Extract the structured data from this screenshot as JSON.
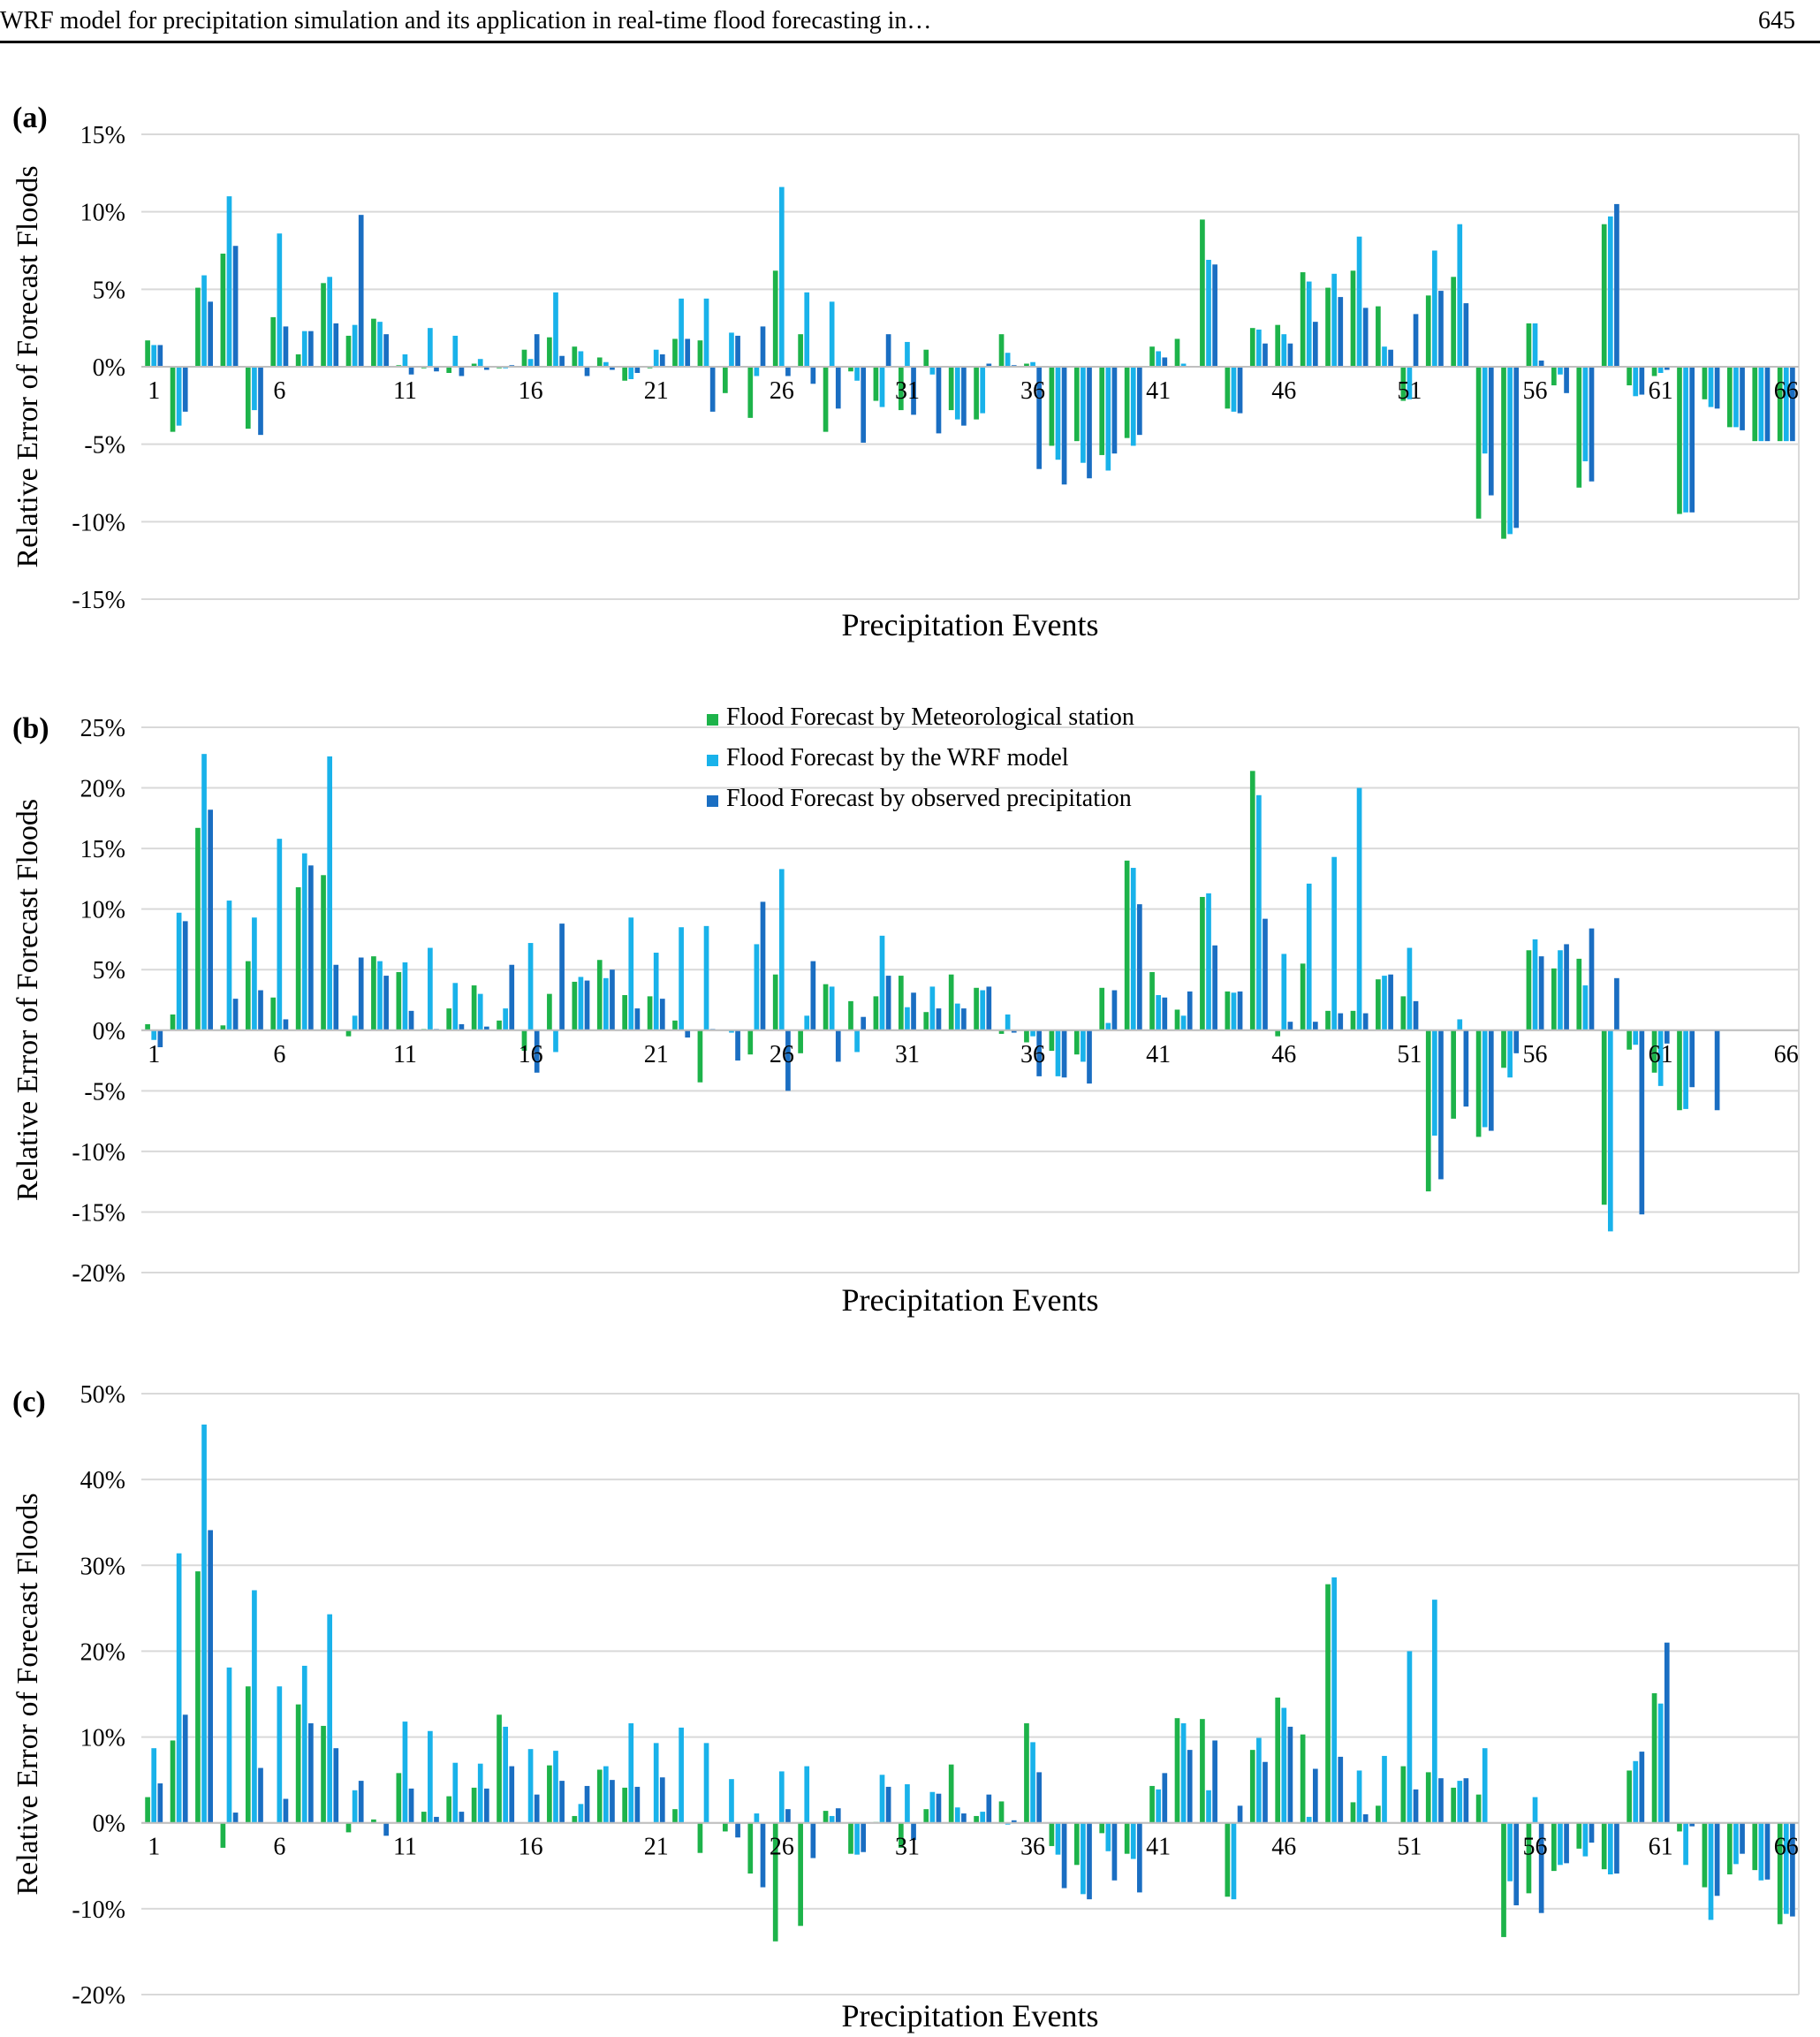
{
  "header": {
    "title": "WRF model for precipitation simulation and its application in real-time flood forecasting in…",
    "page_number": "645"
  },
  "colors": {
    "meteorological": "#1db34a",
    "wrf": "#19b2ea",
    "observed": "#1a6ec2",
    "grid": "#d9d9d9",
    "axis": "#bfbfbf"
  },
  "legend": {
    "items": [
      {
        "label": "Flood Forecast by Meteorological station",
        "color": "#1db34a"
      },
      {
        "label": "Flood Forecast by the WRF model",
        "color": "#19b2ea"
      },
      {
        "label": "Flood Forecast by observed precipitation",
        "color": "#1a6ec2"
      }
    ]
  },
  "chart_data": [
    {
      "type": "bar",
      "panel_label": "(a)",
      "xlabel": "Precipitation Events",
      "ylabel": "Relative Error of Forecast Floods",
      "ylim": [
        -15,
        15
      ],
      "yticks": [
        -15,
        -10,
        -5,
        0,
        5,
        10,
        15
      ],
      "ytick_labels": [
        "-15%",
        "-10%",
        "-5%",
        "0%",
        "5%",
        "10%",
        "15%"
      ],
      "xtick_labels": [
        "1",
        "6",
        "11",
        "16",
        "21",
        "26",
        "31",
        "36",
        "41",
        "46",
        "51",
        "56",
        "61",
        "66"
      ],
      "series": [
        {
          "name": "Flood Forecast by Meteorological station",
          "values": [
            1.7,
            -4.2,
            5.1,
            7.3,
            -4.0,
            3.2,
            0.8,
            5.4,
            2.0,
            3.1,
            0.1,
            -0.1,
            -0.4,
            0.2,
            -0.1,
            1.1,
            1.9,
            1.3,
            0.6,
            -0.9,
            -0.1,
            1.8,
            1.7,
            -1.7,
            -3.3,
            6.2,
            2.1,
            -4.2,
            -0.3,
            -2.2,
            -2.8,
            1.1,
            -2.8,
            -3.4,
            2.1,
            0.2,
            -5.1,
            -4.8,
            -5.7,
            -4.6,
            1.3,
            1.8,
            9.5,
            -2.7,
            2.5,
            2.7,
            6.1,
            5.1,
            6.2,
            3.9,
            -2.2,
            4.6,
            5.8,
            -9.8,
            -11.1,
            2.8,
            -1.2,
            -7.8,
            9.2,
            -1.2,
            -0.6,
            -9.5,
            -2.1,
            -3.9,
            -4.8,
            -4.8
          ]
        },
        {
          "name": "Flood Forecast by the WRF model",
          "values": [
            1.4,
            -3.8,
            5.9,
            11.0,
            -2.8,
            8.6,
            2.3,
            5.8,
            2.7,
            2.9,
            0.8,
            2.5,
            2.0,
            0.5,
            -0.1,
            0.5,
            4.8,
            1.0,
            0.3,
            -0.8,
            1.1,
            4.4,
            4.4,
            2.2,
            -0.6,
            11.6,
            4.8,
            4.2,
            -0.9,
            -2.6,
            1.6,
            -0.5,
            -3.4,
            -3.0,
            0.9,
            0.3,
            -6.0,
            -6.2,
            -6.7,
            -5.1,
            1.0,
            0.2,
            6.9,
            -2.9,
            2.4,
            2.1,
            5.5,
            6.0,
            8.4,
            1.3,
            -2.1,
            7.5,
            9.2,
            -5.6,
            -10.8,
            2.8,
            -0.5,
            -6.1,
            9.7,
            -1.9,
            -0.4,
            -9.4,
            -2.6,
            -3.9,
            -4.8,
            -4.8
          ]
        },
        {
          "name": "Flood Forecast by observed precipitation",
          "values": [
            1.4,
            -2.9,
            4.2,
            7.8,
            -4.4,
            2.6,
            2.3,
            2.8,
            9.8,
            2.1,
            -0.5,
            -0.3,
            -0.6,
            -0.2,
            0.1,
            2.1,
            0.7,
            -0.6,
            -0.2,
            -0.4,
            0.8,
            1.8,
            -2.9,
            2.0,
            2.6,
            -0.6,
            -1.1,
            -2.7,
            -4.9,
            2.1,
            -3.1,
            -4.3,
            -3.8,
            0.2,
            0.1,
            -6.6,
            -7.6,
            -7.2,
            -5.6,
            -4.4,
            0.6,
            0.0,
            6.6,
            -3.0,
            1.5,
            1.5,
            2.9,
            4.5,
            3.8,
            1.1,
            3.4,
            4.9,
            4.1,
            -8.3,
            -10.4,
            0.4,
            -1.7,
            -7.4,
            10.5,
            -1.8,
            -0.2,
            -9.4,
            -2.7,
            -4.1,
            -4.8,
            -4.8
          ]
        }
      ]
    },
    {
      "type": "bar",
      "panel_label": "(b)",
      "xlabel": "Precipitation Events",
      "ylabel": "Relative Error of Forecast Floods",
      "ylim": [
        -20,
        25
      ],
      "yticks": [
        -20,
        -15,
        -10,
        -5,
        0,
        5,
        10,
        15,
        20,
        25
      ],
      "ytick_labels": [
        "-20%",
        "-15%",
        "-10%",
        "-5%",
        "0%",
        "5%",
        "10%",
        "15%",
        "20%",
        "25%"
      ],
      "xtick_labels": [
        "1",
        "6",
        "11",
        "16",
        "21",
        "26",
        "31",
        "36",
        "41",
        "46",
        "51",
        "56",
        "61",
        "66"
      ],
      "series": [
        {
          "name": "Flood Forecast by Meteorological station",
          "values": [
            0.5,
            1.3,
            16.7,
            0.4,
            5.7,
            2.7,
            11.8,
            12.8,
            -0.5,
            6.1,
            4.8,
            0.1,
            1.8,
            3.7,
            0.8,
            -1.7,
            3.0,
            4.0,
            5.8,
            2.9,
            2.8,
            0.8,
            -4.3,
            0.0,
            -2.0,
            4.6,
            -1.9,
            3.8,
            2.4,
            2.8,
            4.5,
            1.5,
            4.6,
            3.5,
            -0.3,
            -1.0,
            -1.7,
            -2.0,
            3.5,
            14.0,
            4.8,
            1.7,
            11.0,
            3.2,
            21.4,
            -0.5,
            5.5,
            1.6,
            1.6,
            4.2,
            2.8,
            -13.3,
            -7.3,
            -8.8,
            -3.1,
            6.6,
            5.1,
            5.9,
            -14.4,
            -1.6,
            -3.5,
            -6.6,
            0.0,
            0.0,
            0.0,
            0.0
          ]
        },
        {
          "name": "Flood Forecast by the WRF model",
          "values": [
            -0.8,
            9.7,
            22.8,
            10.7,
            9.3,
            15.8,
            14.6,
            22.6,
            1.2,
            5.7,
            5.6,
            6.8,
            3.9,
            3.0,
            1.8,
            7.2,
            -1.8,
            4.4,
            4.3,
            9.3,
            6.4,
            8.5,
            8.6,
            -0.2,
            7.1,
            13.3,
            1.2,
            3.6,
            -1.8,
            7.8,
            1.9,
            3.6,
            2.2,
            3.3,
            1.3,
            -0.5,
            -3.8,
            -2.6,
            0.6,
            13.4,
            2.9,
            1.2,
            11.3,
            3.1,
            19.4,
            6.3,
            12.1,
            14.3,
            20.0,
            4.5,
            6.8,
            -8.7,
            0.9,
            -8.0,
            -3.9,
            7.5,
            6.6,
            3.7,
            -16.6,
            -1.2,
            -4.6,
            -6.5,
            0.0,
            0.0,
            0.0,
            0.0
          ]
        },
        {
          "name": "Flood Forecast by observed precipitation",
          "values": [
            -1.4,
            9.0,
            18.2,
            2.6,
            3.3,
            0.9,
            13.6,
            5.4,
            6.0,
            4.5,
            1.6,
            0.1,
            0.5,
            0.3,
            5.4,
            -3.5,
            8.8,
            4.1,
            5.0,
            1.8,
            2.6,
            -0.6,
            0.1,
            -2.5,
            10.6,
            -5.0,
            5.7,
            -2.6,
            1.1,
            4.5,
            3.1,
            1.8,
            1.8,
            3.6,
            -0.2,
            -3.8,
            -3.9,
            -4.4,
            3.3,
            10.4,
            2.7,
            3.2,
            7.0,
            3.2,
            9.2,
            0.7,
            0.7,
            1.4,
            1.4,
            4.6,
            2.4,
            -12.3,
            -6.3,
            -8.3,
            -1.9,
            6.1,
            7.1,
            8.4,
            4.3,
            -15.2,
            -1.1,
            -4.7,
            -6.6,
            0.0,
            0.0,
            0.0
          ]
        }
      ]
    },
    {
      "type": "bar",
      "panel_label": "(c)",
      "xlabel": "Precipitation Events",
      "ylabel": "Relative Error of Forecast Floods",
      "ylim": [
        -20,
        50
      ],
      "yticks": [
        -20,
        -10,
        0,
        10,
        20,
        30,
        40,
        50
      ],
      "ytick_labels": [
        "-20%",
        "-10%",
        "0%",
        "10%",
        "20%",
        "30%",
        "40%",
        "50%"
      ],
      "xtick_labels": [
        "1",
        "6",
        "11",
        "16",
        "21",
        "26",
        "31",
        "36",
        "41",
        "46",
        "51",
        "56",
        "61",
        "66"
      ],
      "series": [
        {
          "name": "Flood Forecast by Meteorological station",
          "values": [
            3.0,
            9.6,
            29.3,
            -2.9,
            15.9,
            0.0,
            13.8,
            11.3,
            -1.1,
            0.4,
            5.8,
            1.3,
            3.1,
            4.1,
            12.6,
            0.0,
            6.7,
            0.8,
            6.2,
            4.1,
            0.0,
            1.6,
            -3.5,
            -1.0,
            -5.9,
            -13.8,
            -12.0,
            1.4,
            -3.6,
            0.1,
            -2.9,
            1.6,
            6.8,
            0.8,
            2.5,
            11.6,
            -2.7,
            -4.9,
            -1.2,
            -3.6,
            4.3,
            12.2,
            12.1,
            -8.6,
            8.5,
            14.6,
            10.3,
            27.8,
            2.4,
            2.0,
            6.6,
            5.9,
            4.1,
            3.3,
            -13.3,
            -8.2,
            -5.6,
            -3.0,
            -5.4,
            6.1,
            15.1,
            -1.0,
            -7.5,
            -6.0,
            -5.5,
            -11.8
          ]
        },
        {
          "name": "Flood Forecast by the WRF model",
          "values": [
            8.7,
            31.4,
            46.4,
            18.1,
            27.1,
            15.9,
            18.3,
            24.3,
            3.8,
            0.0,
            11.8,
            10.7,
            7.0,
            6.9,
            11.2,
            8.6,
            8.4,
            2.2,
            6.6,
            11.6,
            9.3,
            11.1,
            9.3,
            5.1,
            1.1,
            6.0,
            6.6,
            0.8,
            -3.7,
            5.6,
            4.5,
            3.6,
            1.8,
            1.3,
            -0.2,
            9.4,
            -3.7,
            -8.3,
            -3.3,
            -4.2,
            3.9,
            11.6,
            3.8,
            -8.9,
            9.9,
            13.4,
            0.7,
            28.6,
            6.1,
            7.8,
            20.0,
            26.0,
            4.9,
            8.7,
            -6.8,
            3.0,
            -4.9,
            -3.9,
            -6.0,
            7.2,
            13.9,
            -4.9,
            -11.3,
            -4.8,
            -6.7,
            -10.6
          ]
        },
        {
          "name": "Flood Forecast by observed precipitation",
          "values": [
            4.6,
            12.6,
            34.1,
            1.2,
            6.4,
            2.8,
            11.6,
            8.7,
            4.9,
            -1.5,
            4.0,
            0.7,
            1.3,
            4.0,
            6.6,
            3.3,
            4.9,
            4.3,
            5.0,
            4.2,
            5.3,
            0.0,
            0.0,
            -1.7,
            -7.5,
            1.6,
            -4.1,
            1.7,
            -3.4,
            4.2,
            -2.0,
            3.4,
            1.1,
            3.3,
            0.3,
            5.9,
            -7.6,
            -8.9,
            -6.7,
            -8.1,
            5.8,
            8.5,
            9.6,
            2.0,
            7.1,
            11.2,
            6.3,
            7.7,
            1.0,
            0.0,
            3.9,
            5.2,
            5.2,
            0.0,
            -9.6,
            -10.5,
            -4.7,
            -2.3,
            -5.9,
            8.3,
            21.0,
            -0.4,
            -8.5,
            -3.6,
            -6.6,
            -10.9
          ]
        }
      ]
    }
  ]
}
